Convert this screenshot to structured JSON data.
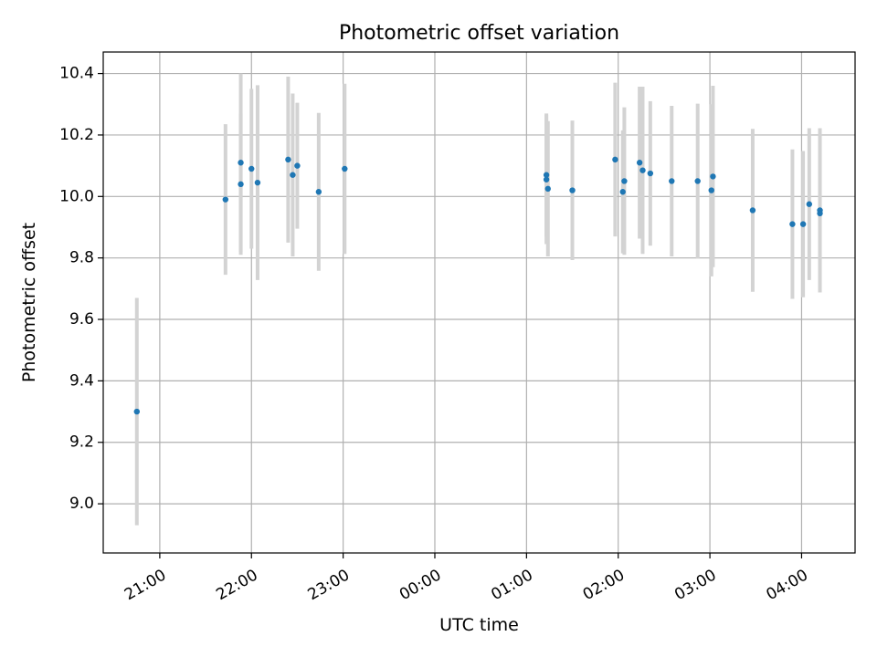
{
  "chart_data": {
    "type": "scatter",
    "title": "Photometric offset variation",
    "xlabel": "UTC time",
    "ylabel": "Photometric offset",
    "x_is_time": true,
    "xlim": [
      "20:23",
      "04:35"
    ],
    "ylim": [
      8.84,
      10.47
    ],
    "x_ticks": [
      "21:00",
      "22:00",
      "23:00",
      "00:00",
      "01:00",
      "02:00",
      "03:00",
      "04:00"
    ],
    "y_ticks": [
      9.0,
      9.2,
      9.4,
      9.6,
      9.8,
      10.0,
      10.2,
      10.4
    ],
    "y_tick_labels": [
      "9.0",
      "9.2",
      "9.4",
      "9.6",
      "9.8",
      "10.0",
      "10.2",
      "10.4"
    ],
    "grid": true,
    "marker_color": "#1f77b4",
    "errorbar_color": "#d3d3d3",
    "series": [
      {
        "points": [
          {
            "t": "20:45",
            "y": 9.3,
            "err": 0.37
          },
          {
            "t": "21:43",
            "y": 9.99,
            "err": 0.245
          },
          {
            "t": "21:53",
            "y": 10.11,
            "err": 0.29
          },
          {
            "t": "21:53",
            "y": 10.04,
            "err": 0.23
          },
          {
            "t": "22:00",
            "y": 10.09,
            "err": 0.26
          },
          {
            "t": "22:04",
            "y": 10.045,
            "err": 0.317
          },
          {
            "t": "22:24",
            "y": 10.12,
            "err": 0.27
          },
          {
            "t": "22:27",
            "y": 10.07,
            "err": 0.265
          },
          {
            "t": "22:30",
            "y": 10.1,
            "err": 0.205
          },
          {
            "t": "22:44",
            "y": 10.015,
            "err": 0.257
          },
          {
            "t": "23:01",
            "y": 10.09,
            "err": 0.277
          },
          {
            "t": "01:13",
            "y": 10.07,
            "err": 0.2
          },
          {
            "t": "01:13",
            "y": 10.055,
            "err": 0.21
          },
          {
            "t": "01:14",
            "y": 10.025,
            "err": 0.22
          },
          {
            "t": "01:30",
            "y": 10.02,
            "err": 0.227
          },
          {
            "t": "01:58",
            "y": 10.12,
            "err": 0.25
          },
          {
            "t": "02:03",
            "y": 10.015,
            "err": 0.2
          },
          {
            "t": "02:04",
            "y": 10.05,
            "err": 0.24
          },
          {
            "t": "02:14",
            "y": 10.11,
            "err": 0.247
          },
          {
            "t": "02:16",
            "y": 10.085,
            "err": 0.272
          },
          {
            "t": "02:21",
            "y": 10.075,
            "err": 0.235
          },
          {
            "t": "02:35",
            "y": 10.05,
            "err": 0.245
          },
          {
            "t": "02:52",
            "y": 10.05,
            "err": 0.252
          },
          {
            "t": "03:01",
            "y": 10.02,
            "err": 0.28
          },
          {
            "t": "03:02",
            "y": 10.065,
            "err": 0.295
          },
          {
            "t": "03:28",
            "y": 9.955,
            "err": 0.265
          },
          {
            "t": "03:54",
            "y": 9.91,
            "err": 0.243
          },
          {
            "t": "04:01",
            "y": 9.91,
            "err": 0.238
          },
          {
            "t": "04:05",
            "y": 9.975,
            "err": 0.247
          },
          {
            "t": "04:12",
            "y": 9.955,
            "err": 0.267
          },
          {
            "t": "04:12",
            "y": 9.945,
            "err": 0.257
          }
        ]
      }
    ]
  }
}
